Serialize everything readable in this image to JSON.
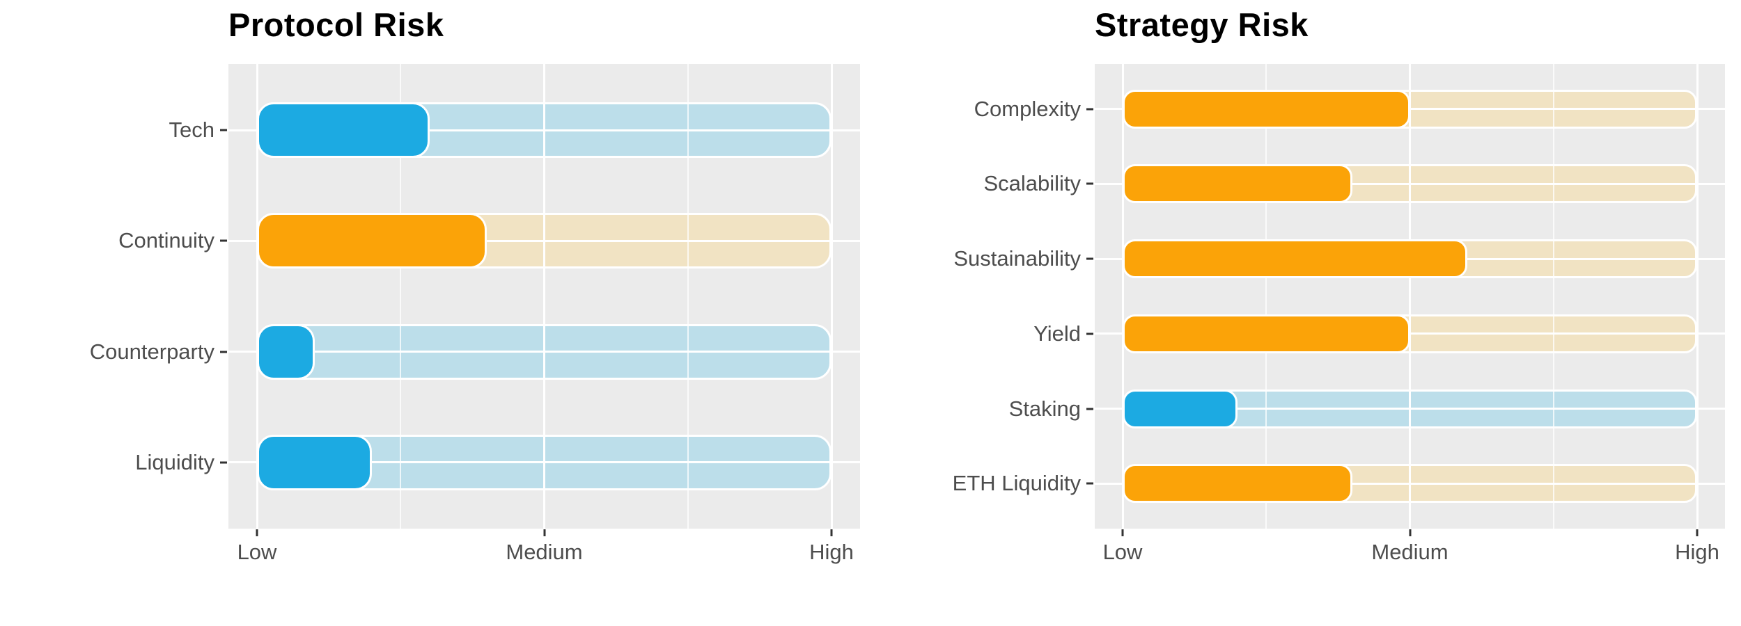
{
  "colors": {
    "page_bg": "#FFFFFF",
    "panel_bg": "#EBEBEB",
    "gridline": "#FFFFFF",
    "blue": "#1CAAE2",
    "blue_track": "#BCDEEA",
    "orange": "#FBA308",
    "orange_track": "#F1E3C3",
    "title_text": "#000000",
    "axis_text": "#4D4D4D",
    "tick_mark": "#333333"
  },
  "axis": {
    "tick_labels": [
      "Low",
      "Medium",
      "High"
    ],
    "tick_positions": [
      0,
      0.5,
      1
    ],
    "scale_note": "values are fractions of the Low-to-High axis: 0 = Low, 0.5 = Medium, 1 = High"
  },
  "chart_data": [
    {
      "type": "bar",
      "orientation": "horizontal",
      "title": "Protocol Risk",
      "categories": [
        "Tech",
        "Continuity",
        "Counterparty",
        "Liquidity"
      ],
      "values": [
        0.3,
        0.4,
        0.1,
        0.2
      ],
      "bar_colors": [
        "blue",
        "orange",
        "blue",
        "blue"
      ],
      "track_colors": [
        "blue_track",
        "orange_track",
        "blue_track",
        "blue_track"
      ],
      "track_full_length": true,
      "xlabel": "",
      "ylabel": "",
      "x_tick_labels": [
        "Low",
        "Medium",
        "High"
      ],
      "x_tick_positions": [
        0,
        0.5,
        1
      ],
      "xlim": [
        0,
        1
      ],
      "grid": "white major gridlines at ticks and row centers, white minor gridlines between ticks",
      "legend": "none"
    },
    {
      "type": "bar",
      "orientation": "horizontal",
      "title": "Strategy Risk",
      "categories": [
        "Complexity",
        "Scalability",
        "Sustainability",
        "Yield",
        "Staking",
        "ETH Liquidity"
      ],
      "values": [
        0.5,
        0.4,
        0.6,
        0.5,
        0.2,
        0.4
      ],
      "bar_colors": [
        "orange",
        "orange",
        "orange",
        "orange",
        "blue",
        "orange"
      ],
      "track_colors": [
        "orange_track",
        "orange_track",
        "orange_track",
        "orange_track",
        "blue_track",
        "orange_track"
      ],
      "track_full_length": true,
      "xlabel": "",
      "ylabel": "",
      "x_tick_labels": [
        "Low",
        "Medium",
        "High"
      ],
      "x_tick_positions": [
        0,
        0.5,
        1
      ],
      "xlim": [
        0,
        1
      ],
      "grid": "white major gridlines at ticks and row centers, white minor gridlines between ticks",
      "legend": "none"
    }
  ]
}
